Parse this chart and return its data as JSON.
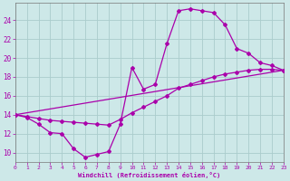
{
  "xlabel": "Windchill (Refroidissement éolien,°C)",
  "bg_color": "#cde8e8",
  "line_color": "#aa00aa",
  "grid_color": "#aacccc",
  "x_min": 0,
  "x_max": 23,
  "y_min": 9.0,
  "y_max": 25.8,
  "y_ticks": [
    10,
    12,
    14,
    16,
    18,
    20,
    22,
    24
  ],
  "x_ticks": [
    0,
    1,
    2,
    3,
    4,
    5,
    6,
    7,
    8,
    9,
    10,
    11,
    12,
    13,
    14,
    15,
    16,
    17,
    18,
    19,
    20,
    21,
    22,
    23
  ],
  "curve1_x": [
    0,
    1,
    2,
    3,
    4,
    5,
    6,
    7,
    8,
    9,
    10,
    11,
    12,
    13,
    14,
    15,
    16,
    17,
    18,
    19,
    20,
    21,
    22,
    23
  ],
  "curve1_y": [
    14.0,
    13.7,
    13.0,
    12.1,
    12.0,
    10.4,
    9.5,
    9.8,
    10.1,
    13.0,
    19.0,
    16.7,
    17.2,
    21.5,
    25.0,
    25.2,
    25.0,
    24.8,
    23.5,
    21.0,
    20.5,
    19.5,
    19.2,
    18.7
  ],
  "curve2_x": [
    0,
    1,
    2,
    3,
    4,
    5,
    6,
    7,
    8,
    9,
    10,
    11,
    12,
    13,
    14,
    15,
    16,
    17,
    18,
    19,
    20,
    21,
    22,
    23
  ],
  "curve2_y": [
    14.0,
    13.8,
    13.6,
    13.4,
    13.3,
    13.2,
    13.1,
    13.0,
    12.9,
    13.5,
    14.2,
    14.8,
    15.4,
    16.0,
    16.8,
    17.2,
    17.6,
    18.0,
    18.3,
    18.5,
    18.7,
    18.8,
    18.8,
    18.7
  ],
  "curve3_x": [
    0,
    23
  ],
  "curve3_y": [
    14.0,
    18.7
  ]
}
